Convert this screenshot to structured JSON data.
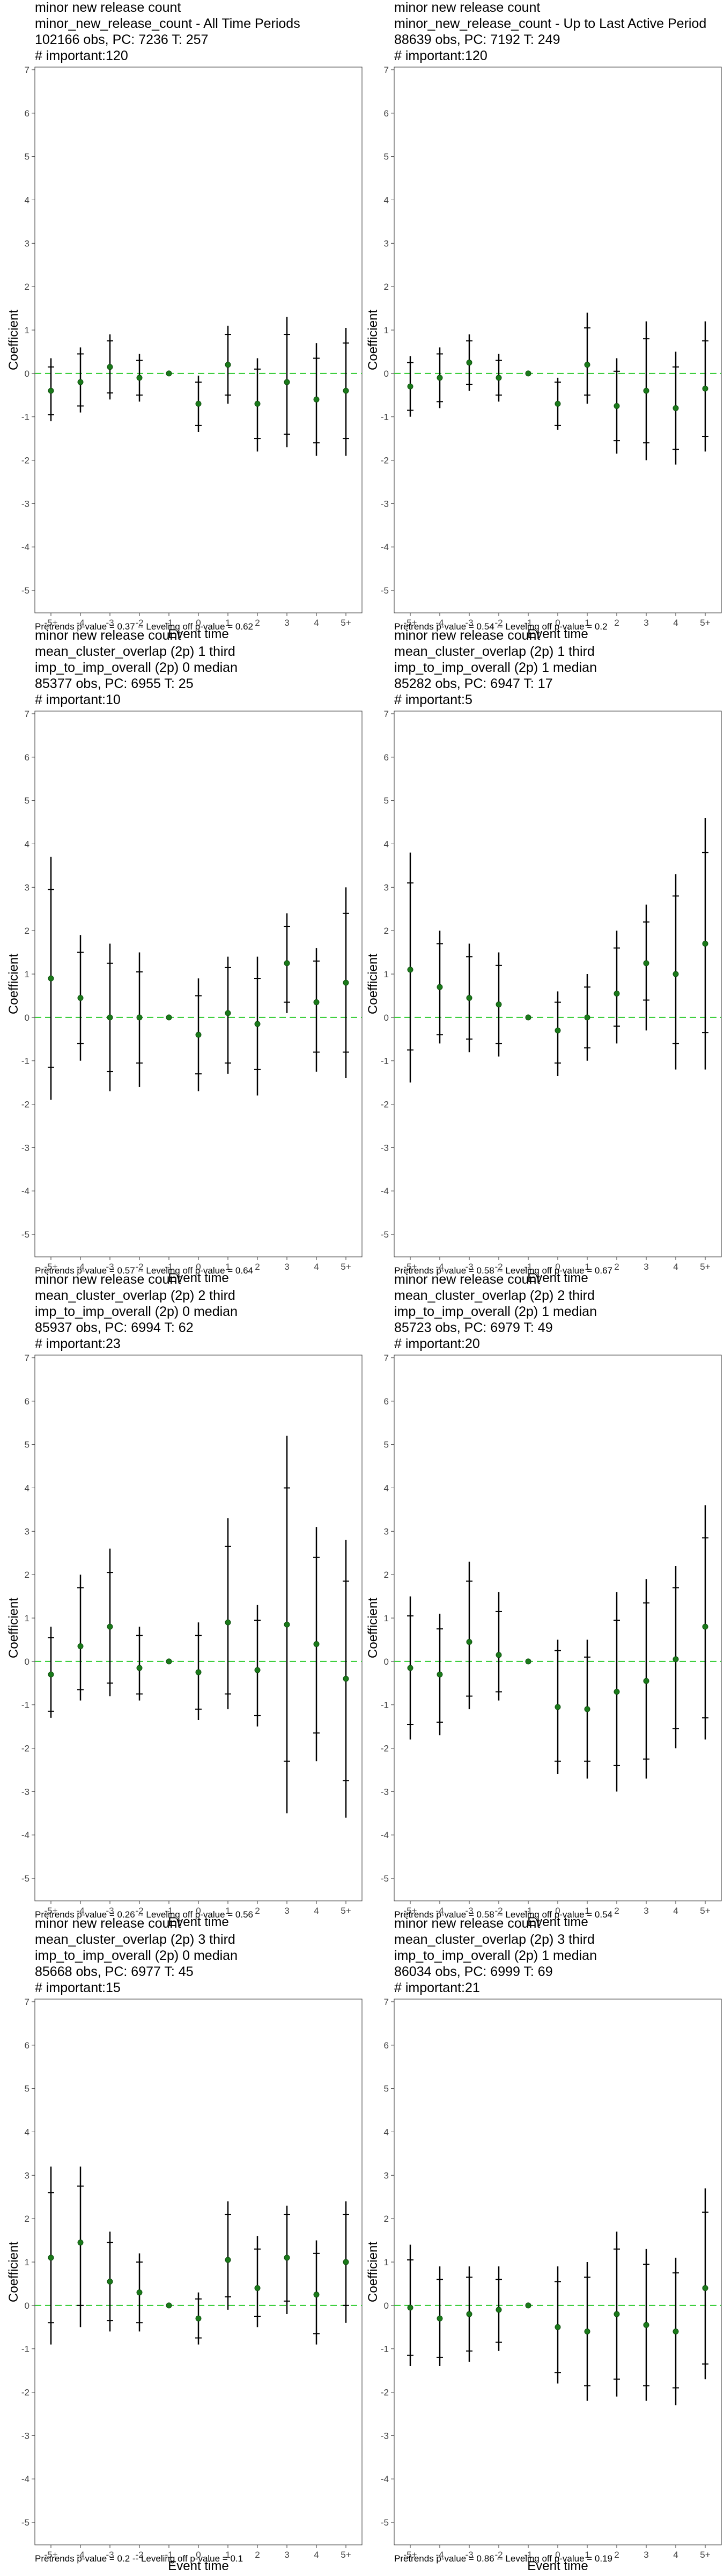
{
  "chart_data": [
    {
      "type": "scatter",
      "title_lines": [
        "minor new release count",
        "minor_new_release_count - All Time Periods",
        "102166 obs, PC: 7236 T: 257",
        "# important:120"
      ],
      "xlabel": "Event time",
      "ylabel": "Coefficient",
      "categories": [
        "-5+",
        "-4",
        "-3",
        "-2",
        "-1",
        "0",
        "1",
        "2",
        "3",
        "4",
        "5+"
      ],
      "ylim": [
        -5,
        7
      ],
      "yticks": [
        -5,
        -4,
        -3,
        -2,
        -1,
        0,
        1,
        2,
        3,
        4,
        5,
        6,
        7
      ],
      "coef": [
        -0.4,
        -0.2,
        0.15,
        -0.1,
        0,
        -0.7,
        0.2,
        -0.7,
        -0.2,
        -0.6,
        -0.4
      ],
      "ci95": [
        [
          -1.1,
          0.35
        ],
        [
          -0.9,
          0.6
        ],
        [
          -0.6,
          0.9
        ],
        [
          -0.65,
          0.45
        ],
        [
          0,
          0
        ],
        [
          -1.35,
          -0.05
        ],
        [
          -0.7,
          1.1
        ],
        [
          -1.8,
          0.35
        ],
        [
          -1.7,
          1.3
        ],
        [
          -1.9,
          0.7
        ],
        [
          -1.9,
          1.05
        ]
      ],
      "ci90": [
        [
          -0.95,
          0.15
        ],
        [
          -0.75,
          0.45
        ],
        [
          -0.45,
          0.75
        ],
        [
          -0.5,
          0.3
        ],
        [
          0,
          0
        ],
        [
          -1.2,
          -0.2
        ],
        [
          -0.5,
          0.9
        ],
        [
          -1.5,
          0.1
        ],
        [
          -1.4,
          0.9
        ],
        [
          -1.6,
          0.35
        ],
        [
          -1.5,
          0.7
        ]
      ],
      "footer": "Pretrends p-value = 0.37 -- Leveling off p-value = 0.62",
      "colors": {
        "point": "#1a7a1a",
        "zero_line": "#33cc33",
        "ci": "#000000"
      }
    },
    {
      "type": "scatter",
      "title_lines": [
        "minor new release count",
        "minor_new_release_count - Up to Last Active Period",
        "88639 obs, PC: 7192 T: 249",
        "# important:120"
      ],
      "xlabel": "Event time",
      "ylabel": "Coefficient",
      "categories": [
        "-5+",
        "-4",
        "-3",
        "-2",
        "-1",
        "0",
        "1",
        "2",
        "3",
        "4",
        "5+"
      ],
      "ylim": [
        -5,
        7
      ],
      "yticks": [
        -5,
        -4,
        -3,
        -2,
        -1,
        0,
        1,
        2,
        3,
        4,
        5,
        6,
        7
      ],
      "coef": [
        -0.3,
        -0.1,
        0.25,
        -0.1,
        0,
        -0.7,
        0.2,
        -0.75,
        -0.4,
        -0.8,
        -0.35
      ],
      "ci95": [
        [
          -1.0,
          0.4
        ],
        [
          -0.8,
          0.6
        ],
        [
          -0.4,
          0.9
        ],
        [
          -0.65,
          0.45
        ],
        [
          0,
          0
        ],
        [
          -1.3,
          -0.1
        ],
        [
          -0.7,
          1.4
        ],
        [
          -1.85,
          0.35
        ],
        [
          -2.0,
          1.2
        ],
        [
          -2.1,
          0.5
        ],
        [
          -1.8,
          1.2
        ]
      ],
      "ci90": [
        [
          -0.85,
          0.25
        ],
        [
          -0.65,
          0.45
        ],
        [
          -0.25,
          0.75
        ],
        [
          -0.5,
          0.3
        ],
        [
          0,
          0
        ],
        [
          -1.2,
          -0.2
        ],
        [
          -0.5,
          1.05
        ],
        [
          -1.55,
          0.05
        ],
        [
          -1.6,
          0.8
        ],
        [
          -1.75,
          0.15
        ],
        [
          -1.45,
          0.75
        ]
      ],
      "footer": "Pretrends p-value = 0.54 -- Leveling off p-value = 0.2",
      "colors": {
        "point": "#1a7a1a",
        "zero_line": "#33cc33",
        "ci": "#000000"
      }
    },
    {
      "type": "scatter",
      "title_lines": [
        "minor new release count",
        "mean_cluster_overlap (2p) 1 third",
        "imp_to_imp_overall (2p) 0 median",
        "85377 obs, PC: 6955 T: 25",
        "# important:10"
      ],
      "xlabel": "Event time",
      "ylabel": "Coefficient",
      "categories": [
        "-5+",
        "-4",
        "-3",
        "-2",
        "-1",
        "0",
        "1",
        "2",
        "3",
        "4",
        "5+"
      ],
      "ylim": [
        -5,
        7
      ],
      "yticks": [
        -5,
        -4,
        -3,
        -2,
        -1,
        0,
        1,
        2,
        3,
        4,
        5,
        6,
        7
      ],
      "coef": [
        0.9,
        0.45,
        0.0,
        0.0,
        0,
        -0.4,
        0.1,
        -0.15,
        1.25,
        0.35,
        0.8
      ],
      "ci95": [
        [
          -1.9,
          3.7
        ],
        [
          -1.0,
          1.9
        ],
        [
          -1.7,
          1.7
        ],
        [
          -1.6,
          1.5
        ],
        [
          0,
          0
        ],
        [
          -1.7,
          0.9
        ],
        [
          -1.3,
          1.4
        ],
        [
          -1.8,
          1.4
        ],
        [
          0.1,
          2.4
        ],
        [
          -1.25,
          1.6
        ],
        [
          -1.4,
          3.0
        ]
      ],
      "ci90": [
        [
          -1.15,
          2.95
        ],
        [
          -0.6,
          1.5
        ],
        [
          -1.25,
          1.25
        ],
        [
          -1.05,
          1.05
        ],
        [
          0,
          0
        ],
        [
          -1.3,
          0.5
        ],
        [
          -1.05,
          1.15
        ],
        [
          -1.2,
          0.9
        ],
        [
          0.35,
          2.1
        ],
        [
          -0.8,
          1.3
        ],
        [
          -0.8,
          2.4
        ]
      ],
      "footer": "Pretrends p-value = 0.57 -- Leveling off p-value = 0.64",
      "colors": {
        "point": "#1a7a1a",
        "zero_line": "#33cc33",
        "ci": "#000000"
      }
    },
    {
      "type": "scatter",
      "title_lines": [
        "minor new release count",
        "mean_cluster_overlap (2p) 1 third",
        "imp_to_imp_overall (2p) 1 median",
        "85282 obs, PC: 6947 T: 17",
        "# important:5"
      ],
      "xlabel": "Event time",
      "ylabel": "Coefficient",
      "categories": [
        "-5+",
        "-4",
        "-3",
        "-2",
        "-1",
        "0",
        "1",
        "2",
        "3",
        "4",
        "5+"
      ],
      "ylim": [
        -5,
        7
      ],
      "yticks": [
        -5,
        -4,
        -3,
        -2,
        -1,
        0,
        1,
        2,
        3,
        4,
        5,
        6,
        7
      ],
      "coef": [
        1.1,
        0.7,
        0.45,
        0.3,
        0,
        -0.3,
        0.0,
        0.55,
        1.25,
        1.0,
        1.7
      ],
      "ci95": [
        [
          -1.5,
          3.8
        ],
        [
          -0.6,
          2.0
        ],
        [
          -0.8,
          1.7
        ],
        [
          -0.9,
          1.5
        ],
        [
          0,
          0
        ],
        [
          -1.35,
          0.6
        ],
        [
          -1.0,
          1.0
        ],
        [
          -0.6,
          2.0
        ],
        [
          -0.3,
          2.6
        ],
        [
          -1.2,
          3.3
        ],
        [
          -1.2,
          4.6
        ]
      ],
      "ci90": [
        [
          -0.75,
          3.1
        ],
        [
          -0.4,
          1.7
        ],
        [
          -0.5,
          1.4
        ],
        [
          -0.6,
          1.2
        ],
        [
          0,
          0
        ],
        [
          -1.05,
          0.35
        ],
        [
          -0.7,
          0.7
        ],
        [
          -0.2,
          1.6
        ],
        [
          0.4,
          2.2
        ],
        [
          -0.6,
          2.8
        ],
        [
          -0.35,
          3.8
        ]
      ],
      "footer": "Pretrends p-value = 0.58 -- Leveling off p-value = 0.67",
      "colors": {
        "point": "#1a7a1a",
        "zero_line": "#33cc33",
        "ci": "#000000"
      }
    },
    {
      "type": "scatter",
      "title_lines": [
        "minor new release count",
        "mean_cluster_overlap (2p) 2 third",
        "imp_to_imp_overall (2p) 0 median",
        "85937 obs, PC: 6994 T: 62",
        "# important:23"
      ],
      "xlabel": "Event time",
      "ylabel": "Coefficient",
      "categories": [
        "-5+",
        "-4",
        "-3",
        "-2",
        "-1",
        "0",
        "1",
        "2",
        "3",
        "4",
        "5+"
      ],
      "ylim": [
        -5,
        7
      ],
      "yticks": [
        -5,
        -4,
        -3,
        -2,
        -1,
        0,
        1,
        2,
        3,
        4,
        5,
        6,
        7
      ],
      "coef": [
        -0.3,
        0.35,
        0.8,
        -0.15,
        0,
        -0.25,
        0.9,
        -0.2,
        0.85,
        0.4,
        -0.4
      ],
      "ci95": [
        [
          -1.3,
          0.8
        ],
        [
          -0.9,
          2.0
        ],
        [
          -0.8,
          2.6
        ],
        [
          -0.9,
          0.8
        ],
        [
          0,
          0
        ],
        [
          -1.35,
          0.9
        ],
        [
          -1.1,
          3.3
        ],
        [
          -1.5,
          1.3
        ],
        [
          -3.5,
          5.2
        ],
        [
          -2.3,
          3.1
        ],
        [
          -3.6,
          2.8
        ]
      ],
      "ci90": [
        [
          -1.15,
          0.55
        ],
        [
          -0.65,
          1.7
        ],
        [
          -0.5,
          2.05
        ],
        [
          -0.75,
          0.6
        ],
        [
          0,
          0
        ],
        [
          -1.1,
          0.6
        ],
        [
          -0.75,
          2.65
        ],
        [
          -1.25,
          0.95
        ],
        [
          -2.3,
          4.0
        ],
        [
          -1.65,
          2.4
        ],
        [
          -2.75,
          1.85
        ]
      ],
      "footer": "Pretrends p-value = 0.26 -- Leveling off p-value = 0.56",
      "colors": {
        "point": "#1a7a1a",
        "zero_line": "#33cc33",
        "ci": "#000000"
      }
    },
    {
      "type": "scatter",
      "title_lines": [
        "minor new release count",
        "mean_cluster_overlap (2p) 2 third",
        "imp_to_imp_overall (2p) 1 median",
        "85723 obs, PC: 6979 T: 49",
        "# important:20"
      ],
      "xlabel": "Event time",
      "ylabel": "Coefficient",
      "categories": [
        "-5+",
        "-4",
        "-3",
        "-2",
        "-1",
        "0",
        "1",
        "2",
        "3",
        "4",
        "5+"
      ],
      "ylim": [
        -5,
        7
      ],
      "yticks": [
        -5,
        -4,
        -3,
        -2,
        -1,
        0,
        1,
        2,
        3,
        4,
        5,
        6,
        7
      ],
      "coef": [
        -0.15,
        -0.3,
        0.45,
        0.15,
        0,
        -1.05,
        -1.1,
        -0.7,
        -0.45,
        0.05,
        0.8
      ],
      "ci95": [
        [
          -1.8,
          1.5
        ],
        [
          -1.7,
          1.1
        ],
        [
          -1.1,
          2.3
        ],
        [
          -0.9,
          1.6
        ],
        [
          0,
          0
        ],
        [
          -2.6,
          0.5
        ],
        [
          -2.7,
          0.5
        ],
        [
          -3.0,
          1.6
        ],
        [
          -2.7,
          1.9
        ],
        [
          -2.0,
          2.2
        ],
        [
          -1.8,
          3.6
        ]
      ],
      "ci90": [
        [
          -1.45,
          1.05
        ],
        [
          -1.4,
          0.75
        ],
        [
          -0.8,
          1.85
        ],
        [
          -0.7,
          1.15
        ],
        [
          0,
          0
        ],
        [
          -2.3,
          0.25
        ],
        [
          -2.3,
          0.1
        ],
        [
          -2.4,
          0.95
        ],
        [
          -2.25,
          1.35
        ],
        [
          -1.55,
          1.7
        ],
        [
          -1.3,
          2.85
        ]
      ],
      "footer": "Pretrends p-value = 0.58 -- Leveling off p-value = 0.54",
      "colors": {
        "point": "#1a7a1a",
        "zero_line": "#33cc33",
        "ci": "#000000"
      }
    },
    {
      "type": "scatter",
      "title_lines": [
        "minor new release count",
        "mean_cluster_overlap (2p) 3 third",
        "imp_to_imp_overall (2p) 0 median",
        "85668 obs, PC: 6977 T: 45",
        "# important:15"
      ],
      "xlabel": "Event time",
      "ylabel": "Coefficient",
      "categories": [
        "-5+",
        "-4",
        "-3",
        "-2",
        "-1",
        "0",
        "1",
        "2",
        "3",
        "4",
        "5+"
      ],
      "ylim": [
        -5,
        7
      ],
      "yticks": [
        -5,
        -4,
        -3,
        -2,
        -1,
        0,
        1,
        2,
        3,
        4,
        5,
        6,
        7
      ],
      "coef": [
        1.1,
        1.45,
        0.55,
        0.3,
        0,
        -0.3,
        1.05,
        0.4,
        1.1,
        0.25,
        1.0
      ],
      "ci95": [
        [
          -0.9,
          3.2
        ],
        [
          -0.5,
          3.2
        ],
        [
          -0.6,
          1.7
        ],
        [
          -0.6,
          1.2
        ],
        [
          0,
          0
        ],
        [
          -0.9,
          0.3
        ],
        [
          -0.1,
          2.4
        ],
        [
          -0.5,
          1.6
        ],
        [
          -0.2,
          2.3
        ],
        [
          -0.9,
          1.5
        ],
        [
          -0.4,
          2.4
        ]
      ],
      "ci90": [
        [
          -0.4,
          2.6
        ],
        [
          0.0,
          2.75
        ],
        [
          -0.35,
          1.45
        ],
        [
          -0.4,
          1.0
        ],
        [
          0,
          0
        ],
        [
          -0.75,
          0.15
        ],
        [
          0.2,
          2.1
        ],
        [
          -0.25,
          1.3
        ],
        [
          0.1,
          2.1
        ],
        [
          -0.65,
          1.2
        ],
        [
          0.0,
          2.1
        ]
      ],
      "footer": "Pretrends p-value = 0.2 -- Leveling off p-value = 0.1",
      "colors": {
        "point": "#1a7a1a",
        "zero_line": "#33cc33",
        "ci": "#000000"
      }
    },
    {
      "type": "scatter",
      "title_lines": [
        "minor new release count",
        "mean_cluster_overlap (2p) 3 third",
        "imp_to_imp_overall (2p) 1 median",
        "86034 obs, PC: 6999 T: 69",
        "# important:21"
      ],
      "xlabel": "Event time",
      "ylabel": "Coefficient",
      "categories": [
        "-5+",
        "-4",
        "-3",
        "-2",
        "-1",
        "0",
        "1",
        "2",
        "3",
        "4",
        "5+"
      ],
      "ylim": [
        -5,
        7
      ],
      "yticks": [
        -5,
        -4,
        -3,
        -2,
        -1,
        0,
        1,
        2,
        3,
        4,
        5,
        6,
        7
      ],
      "coef": [
        -0.05,
        -0.3,
        -0.2,
        -0.1,
        0,
        -0.5,
        -0.6,
        -0.2,
        -0.45,
        -0.6,
        0.4
      ],
      "ci95": [
        [
          -1.4,
          1.4
        ],
        [
          -1.4,
          0.9
        ],
        [
          -1.3,
          0.9
        ],
        [
          -1.05,
          0.9
        ],
        [
          0,
          0
        ],
        [
          -1.8,
          0.9
        ],
        [
          -2.2,
          1.0
        ],
        [
          -2.1,
          1.7
        ],
        [
          -2.2,
          1.3
        ],
        [
          -2.3,
          1.1
        ],
        [
          -1.7,
          2.7
        ]
      ],
      "ci90": [
        [
          -1.15,
          1.05
        ],
        [
          -1.2,
          0.6
        ],
        [
          -1.05,
          0.65
        ],
        [
          -0.85,
          0.6
        ],
        [
          0,
          0
        ],
        [
          -1.55,
          0.55
        ],
        [
          -1.85,
          0.65
        ],
        [
          -1.7,
          1.3
        ],
        [
          -1.85,
          0.95
        ],
        [
          -1.9,
          0.75
        ],
        [
          -1.35,
          2.15
        ]
      ],
      "footer": "Pretrends p-value = 0.86 -- Leveling off p-value = 0.19",
      "colors": {
        "point": "#1a7a1a",
        "zero_line": "#33cc33",
        "ci": "#000000"
      }
    }
  ]
}
